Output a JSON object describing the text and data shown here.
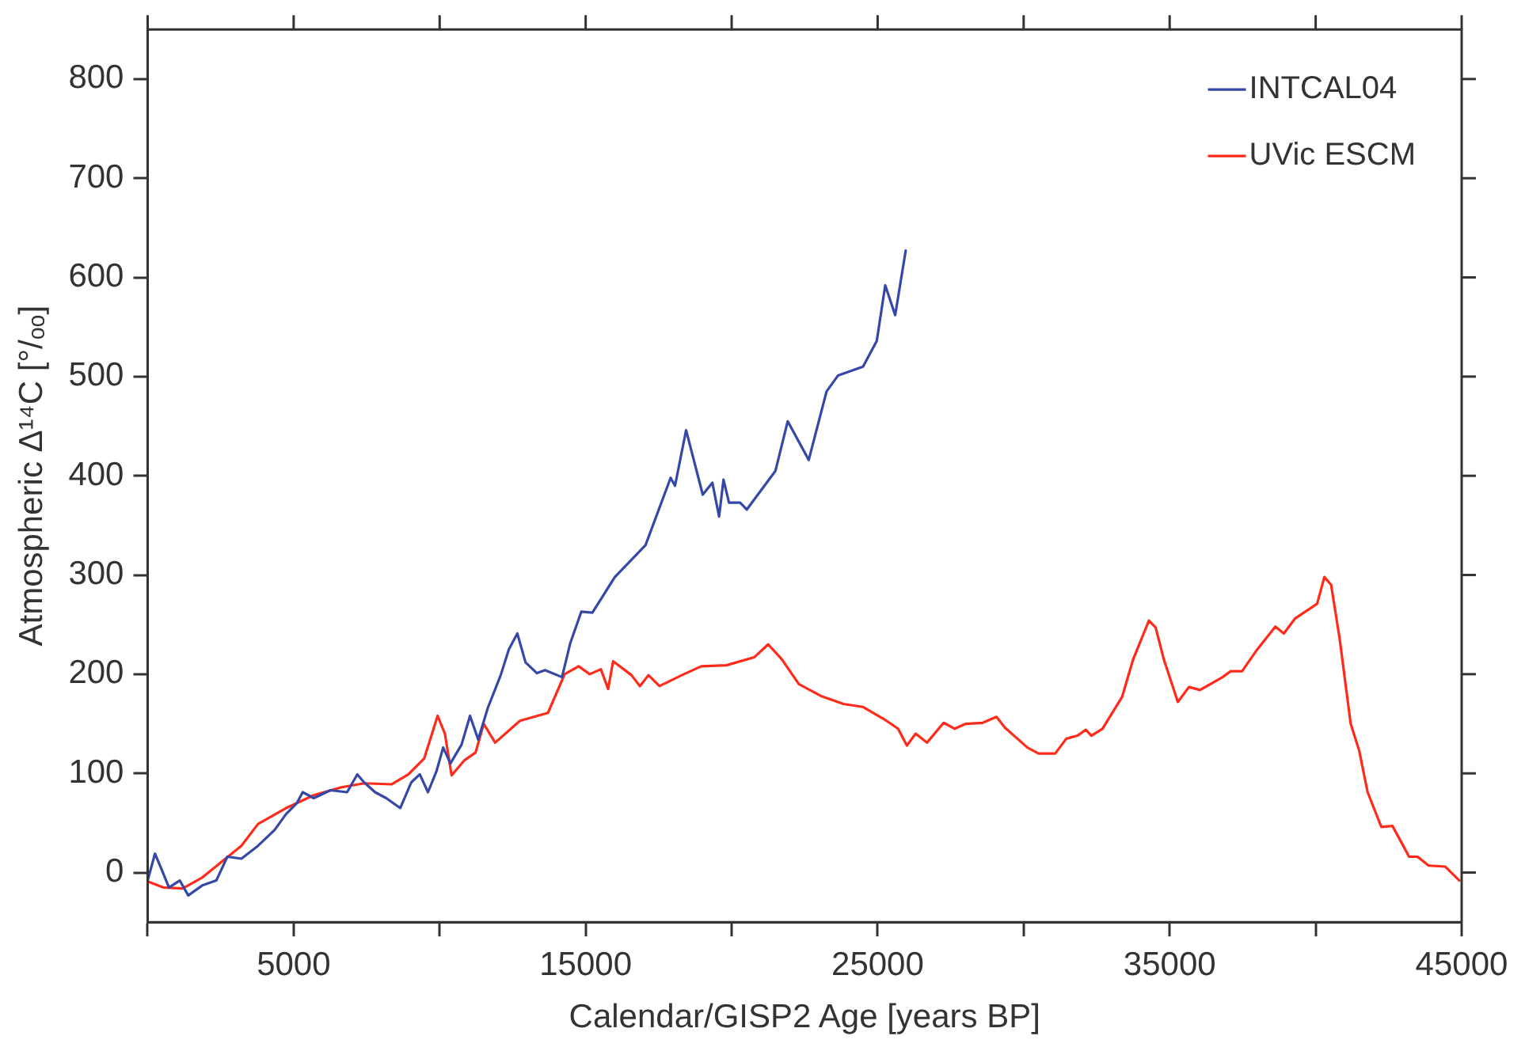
{
  "chart_data": {
    "type": "line",
    "xlabel": "Calendar/GISP2 Age [years BP]",
    "ylabel": "Atmospheric Δ¹⁴C [°/ₒₒ]",
    "xlim": [
      0,
      45000
    ],
    "ylim": [
      -50,
      850
    ],
    "xticks": [
      {
        "value": 0,
        "label": null
      },
      5000,
      {
        "value": 10000,
        "label": null
      },
      15000,
      {
        "value": 20000,
        "label": null
      },
      25000,
      {
        "value": 30000,
        "label": null
      },
      35000,
      {
        "value": 40000,
        "label": null
      },
      45000
    ],
    "yticks": [
      0,
      100,
      200,
      300,
      400,
      500,
      600,
      700,
      800
    ],
    "grid": false,
    "legend": "top right",
    "marker": "none",
    "line_style": "solid",
    "series": [
      {
        "name": "INTCAL04",
        "color": "#3548a8",
        "x": [
          0,
          250,
          440,
          730,
          1100,
          1390,
          1870,
          2350,
          2730,
          3210,
          3780,
          4350,
          4740,
          5110,
          5310,
          5690,
          6260,
          6830,
          7180,
          7410,
          7790,
          8170,
          8650,
          9030,
          9320,
          9600,
          9890,
          10120,
          10370,
          10750,
          11040,
          11320,
          11650,
          12090,
          12370,
          12660,
          12940,
          13330,
          13610,
          14190,
          14470,
          14850,
          15230,
          16000,
          17050,
          17910,
          18060,
          18440,
          19010,
          19340,
          19570,
          19720,
          19910,
          20290,
          20520,
          21500,
          21920,
          22640,
          23250,
          23640,
          24500,
          24970,
          25260,
          25600,
          25960
        ],
        "values": [
          -8,
          19,
          6,
          -15,
          -8,
          -23,
          -13,
          -8,
          16,
          14,
          27,
          43,
          59,
          70,
          81,
          75,
          83,
          81,
          99,
          91,
          81,
          75,
          65,
          91,
          99,
          81,
          102,
          126,
          110,
          129,
          158,
          134,
          166,
          199,
          225,
          241,
          212,
          201,
          204,
          197,
          231,
          263,
          262,
          298,
          330,
          398,
          390,
          446,
          381,
          393,
          359,
          396,
          373,
          373,
          366,
          405,
          455,
          416,
          485,
          501,
          510,
          536,
          592,
          562,
          627
        ]
      },
      {
        "name": "UVic ESCM",
        "color": "#ff2a1a",
        "x": [
          0,
          530,
          1200,
          1870,
          3210,
          3780,
          4740,
          5690,
          6640,
          7410,
          8360,
          8930,
          9470,
          9930,
          10180,
          10410,
          10840,
          11230,
          11510,
          11900,
          12750,
          13710,
          14280,
          14760,
          15140,
          15520,
          15770,
          15940,
          16570,
          16860,
          17150,
          17530,
          18290,
          18960,
          19820,
          20770,
          21250,
          21720,
          22300,
          23060,
          23830,
          24490,
          25200,
          25700,
          26000,
          26300,
          26690,
          27260,
          27640,
          28020,
          28600,
          29070,
          29360,
          30130,
          30510,
          31080,
          31460,
          31840,
          32130,
          32320,
          32700,
          33370,
          33750,
          34290,
          34520,
          34800,
          35280,
          35660,
          36040,
          36810,
          37090,
          37480,
          37950,
          38620,
          38910,
          39290,
          40050,
          40300,
          40530,
          40820,
          41200,
          41490,
          41780,
          42250,
          42630,
          43200,
          43490,
          43870,
          44440,
          44920
        ],
        "values": [
          -9,
          -15,
          -16,
          -5,
          27,
          49,
          65,
          78,
          86,
          90,
          89,
          99,
          115,
          158,
          140,
          98,
          113,
          121,
          150,
          131,
          153,
          161,
          200,
          208,
          200,
          205,
          185,
          213,
          199,
          188,
          199,
          188,
          199,
          208,
          209,
          217,
          230,
          215,
          190,
          178,
          170,
          167,
          155,
          145,
          128,
          140,
          131,
          151,
          145,
          150,
          151,
          157,
          146,
          126,
          120,
          120,
          135,
          138,
          144,
          138,
          145,
          177,
          215,
          254,
          247,
          215,
          172,
          187,
          184,
          197,
          203,
          203,
          223,
          248,
          241,
          256,
          271,
          298,
          290,
          236,
          150,
          123,
          81,
          46,
          47,
          16,
          16,
          7,
          6,
          -8
        ]
      }
    ]
  }
}
